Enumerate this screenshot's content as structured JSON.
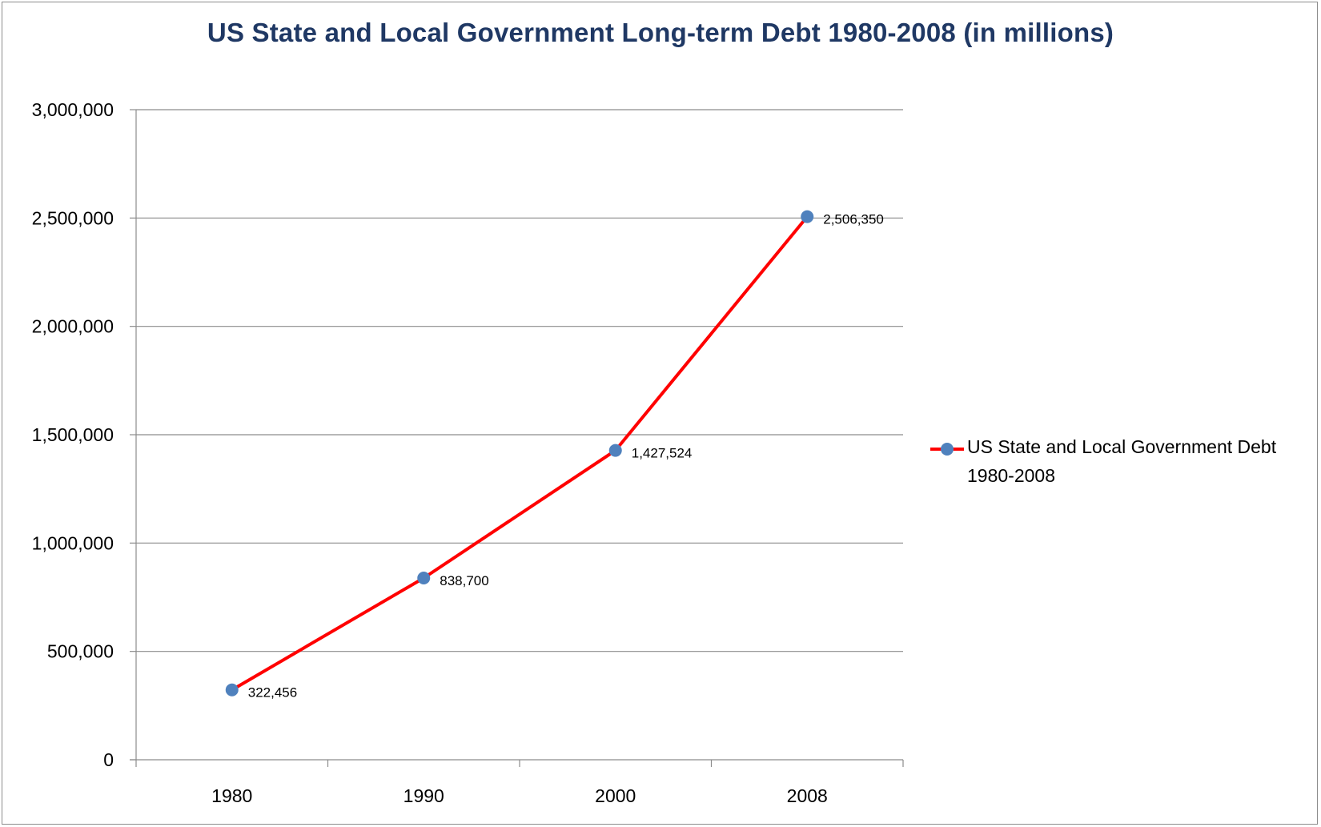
{
  "colors": {
    "title": "#1f3864",
    "line": "#ff0000",
    "marker": "#4f81bd",
    "grid": "#8c8c8c",
    "text": "#000000"
  },
  "chart_data": {
    "type": "line",
    "title": "US State and Local Government Long-term Debt 1980-2008 (in millions)",
    "xlabel": "",
    "ylabel": "",
    "categories": [
      "1980",
      "1990",
      "2000",
      "2008"
    ],
    "series": [
      {
        "name": "US State and Local Government Debt 1980-2008",
        "values": [
          322456,
          838700,
          1427524,
          2506350
        ],
        "data_labels": [
          "322,456",
          "838,700",
          "1,427,524",
          "2,506,350"
        ]
      }
    ],
    "ylim": [
      0,
      3000000
    ],
    "yticks": [
      0,
      500000,
      1000000,
      1500000,
      2000000,
      2500000,
      3000000
    ],
    "ytick_labels": [
      "0",
      "500,000",
      "1,000,000",
      "1,500,000",
      "2,000,000",
      "2,500,000",
      "3,000,000"
    ],
    "grid": true,
    "legend_position": "right"
  }
}
